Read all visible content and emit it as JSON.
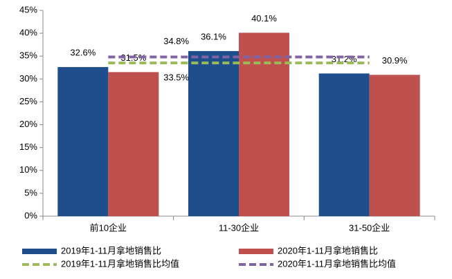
{
  "chart_data": {
    "type": "bar",
    "categories": [
      "前10企业",
      "11-30企业",
      "31-50企业"
    ],
    "series": [
      {
        "name": "2019年1-11月拿地销售比",
        "color": "#1f4e8c",
        "values": [
          32.6,
          36.1,
          31.2
        ],
        "value_labels": [
          "32.6%",
          "36.1%",
          "31.2%"
        ]
      },
      {
        "name": "2020年1-11月拿地销售比",
        "color": "#c0504d",
        "values": [
          31.5,
          40.1,
          30.9
        ],
        "value_labels": [
          "31.5%",
          "40.1%",
          "30.9%"
        ]
      }
    ],
    "average_lines": [
      {
        "name": "2019年1-11月拿地销售比均值",
        "color": "#9bbb59",
        "value": 33.5,
        "value_label": "33.5%"
      },
      {
        "name": "2020年1-11月拿地销售比均值",
        "color": "#8064a2",
        "value": 34.8,
        "value_label": "34.8%"
      }
    ],
    "ylim": [
      0,
      45
    ],
    "yticks": [
      {
        "value": 0,
        "label": "0%"
      },
      {
        "value": 5,
        "label": "5%"
      },
      {
        "value": 10,
        "label": "10%"
      },
      {
        "value": 15,
        "label": "15%"
      },
      {
        "value": 20,
        "label": "20%"
      },
      {
        "value": 25,
        "label": "25%"
      },
      {
        "value": 30,
        "label": "30%"
      },
      {
        "value": 35,
        "label": "35%"
      },
      {
        "value": 40,
        "label": "40%"
      },
      {
        "value": 45,
        "label": "45%"
      }
    ]
  }
}
